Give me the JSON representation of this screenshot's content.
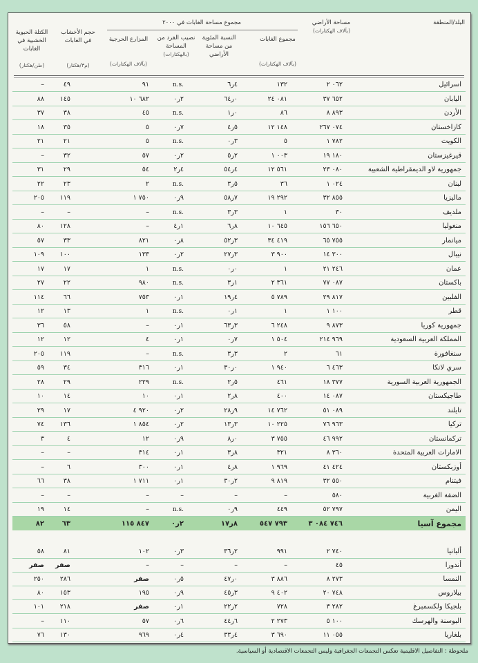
{
  "header": {
    "country": "البلد/المنطقة",
    "land_area": "مساحة الأراضي",
    "land_area_unit": "(بآلاف الهكتارات)",
    "forest_group": "مجموع مساحة الغابات في ٢٠٠٠",
    "forest_total": "مجموع الغابات",
    "forest_total_unit": "(بآلاف الهكتارات)",
    "forest_pct": "النسبة المئوية من مساحة الأراضي",
    "per_capita": "نصيب الفرد من المساحة",
    "per_capita_unit": "(بالهكتارات)",
    "plantations": "المزارع الحرجية",
    "plantations_unit": "(بآلاف الهكتارات)",
    "volume": "حجم الأخشاب في الغابات",
    "volume_unit": "(م٣/هكتار)",
    "biomass": "الكتلة الحيوية الخشبية في الغابات",
    "biomass_unit": "(طن/هكتار)"
  },
  "asia_rows": [
    [
      "اسرائيل",
      "٢ ٠٦٢",
      "١٣٢",
      "٦ر٤",
      "n.s.",
      "٩١",
      "٤٩",
      "–"
    ],
    [
      "اليابان",
      "٣٧ ٦٥٢",
      "٢٤ ٠٨١",
      "٦٤ر٠",
      "٠ر٢",
      "١٠ ٦٨٢",
      "١٤٥",
      "٨٨"
    ],
    [
      "الأردن",
      "٨ ٨٩٣",
      "٨٦",
      "١ر٠",
      "n.s.",
      "٤٥",
      "٣٨",
      "٣٧"
    ],
    [
      "كازاخستان",
      "٢٦٧ ٠٧٤",
      "١٢ ١٤٨",
      "٤ر٥",
      "٠ر٧",
      "٥",
      "٣٥",
      "١٨"
    ],
    [
      "الكويت",
      "١ ٧٨٢",
      "٥",
      "٠ر٣",
      "n.s.",
      "٥",
      "٢١",
      "٢١"
    ],
    [
      "قيرغيزستان",
      "١٩ ١٨٠",
      "١ ٠٠٣",
      "٥ر٢",
      "٠ر٢",
      "٥٧",
      "٣٢",
      "–"
    ],
    [
      "جمهورية لاو الديمقراطية الشعبية",
      "٢٣ ٠٨٠",
      "١٢ ٥٦١",
      "٥٤ر٤",
      "٢ر٤",
      "٥٤",
      "٢٩",
      "٣١"
    ],
    [
      "لبنان",
      "١ ٠٢٤",
      "٣٦",
      "٣ر٥",
      "n.s.",
      "٢",
      "٢٣",
      "٢٢"
    ],
    [
      "ماليزيا",
      "٣٢ ٨٥٥",
      "١٩ ٢٩٢",
      "٥٨ر٧",
      "٠ر٩",
      "١ ٧٥٠",
      "١١٩",
      "٢٠٥"
    ],
    [
      "ملديف",
      "٣٠",
      "١",
      "٣ر٣",
      "n.s.",
      "–",
      "–",
      "–"
    ],
    [
      "منغوليا",
      "١٥٦ ٦٥٠",
      "١٠ ٦٤٥",
      "٦ر٨",
      "٤ر١",
      "–",
      "١٢٨",
      "٨٠"
    ],
    [
      "ميانمار",
      "٦٥ ٧٥٥",
      "٣٤ ٤١٩",
      "٥٢ر٣",
      "٠ر٨",
      "٨٢١",
      "٣٣",
      "٥٧"
    ],
    [
      "نيبال",
      "١٤ ٣٠٠",
      "٣ ٩٠٠",
      "٢٧ر٣",
      "٠ر٢",
      "١٣٣",
      "١٠٠",
      "١٠٩"
    ],
    [
      "عمان",
      "٢١ ٢٤٦",
      "١",
      "٠ر٠",
      "n.s.",
      "١",
      "١٧",
      "١٧"
    ],
    [
      "باكستان",
      "٧٧ ٠٨٧",
      "٢ ٣٦١",
      "٣ر١",
      "n.s.",
      "٩٨٠",
      "٢٢",
      "٢٧"
    ],
    [
      "الفلبين",
      "٢٩ ٨١٧",
      "٥ ٧٨٩",
      "١٩ر٤",
      "٠ر١",
      "٧٥٣",
      "٦٦",
      "١١٤"
    ],
    [
      "قطر",
      "١ ١٠٠",
      "١",
      "٠ر١",
      "n.s.",
      "١",
      "١٣",
      "١٢"
    ],
    [
      "جمهورية كوريا",
      "٩ ٨٧٣",
      "٦ ٢٤٨",
      "٦٣ر٣",
      "٠ر١",
      "–",
      "٥٨",
      "٣٦"
    ],
    [
      "المملكة العربية السعودية",
      "٢١٤ ٩٦٩",
      "١ ٥٠٤",
      "٠ر٧",
      "٠ر١",
      "٤",
      "١٢",
      "١٢"
    ],
    [
      "سنغافورة",
      "٦١",
      "٢",
      "٣ر٣",
      "n.s.",
      "–",
      "١١٩",
      "٢٠٥"
    ],
    [
      "سري لانكا",
      "٦ ٤٦٣",
      "١ ٩٤٠",
      "٣٠ر٠",
      "٠ر١",
      "٣١٦",
      "٣٤",
      "٥٩"
    ],
    [
      "الجمهورية العربية السورية",
      "١٨ ٣٧٧",
      "٤٦١",
      "٢ر٥",
      "n.s.",
      "٢٢٩",
      "٢٩",
      "٢٨"
    ],
    [
      "طاجيكستان",
      "١٤ ٠٨٧",
      "٤٠٠",
      "٢ر٨",
      "٠ر١",
      "١٠",
      "١٤",
      "١٠"
    ],
    [
      "تايلند",
      "٥١ ٠٨٩",
      "١٤ ٧٦٢",
      "٢٨ر٩",
      "٠ر٢",
      "٤ ٩٢٠",
      "١٧",
      "٢٩"
    ],
    [
      "تركيا",
      "٧٦ ٩٦٣",
      "١٠ ٢٢٥",
      "١٣ر٣",
      "٠ر٢",
      "١ ٨٥٤",
      "١٣٦",
      "٧٤"
    ],
    [
      "تركمانستان",
      "٤٦ ٩٩٢",
      "٣ ٧٥٥",
      "٨ر٠",
      "٠ر٩",
      "١٢",
      "٤",
      "٣"
    ],
    [
      "الامارات العربية المتحدة",
      "٨ ٣٦٠",
      "٣٢١",
      "٣ر٨",
      "٠ر١",
      "٣١٤",
      "–",
      "–"
    ],
    [
      "أوزبكستان",
      "٤١ ٤٢٤",
      "١ ٩٦٩",
      "٤ر٨",
      "٠ر١",
      "٣٠٠",
      "٦",
      "–"
    ],
    [
      "فيتنام",
      "٣٢ ٥٥٠",
      "٩ ٨١٩",
      "٣٠ر٢",
      "٠ر١",
      "١ ٧١١",
      "٣٨",
      "٦٦"
    ],
    [
      "الضفة الغربية",
      "٥٨٠",
      "–",
      "–",
      "–",
      "–",
      "–",
      "–"
    ],
    [
      "اليمن",
      "٥٢ ٧٩٧",
      "٤٤٩",
      "٠ر٩",
      "n.s.",
      "–",
      "١٤",
      "١٩"
    ]
  ],
  "asia_total": [
    "مجموع آسيا",
    "٣ ٠٨٤ ٧٤٦",
    "٥٤٧ ٧٩٣",
    "١٧ر٨",
    "٠ر٢",
    "١١٥ ٨٤٧",
    "٦٣",
    "٨٢"
  ],
  "europe_rows": [
    [
      "ألبانيا",
      "٢ ٧٤٠",
      "٩٩١",
      "٣٦ر٢",
      "٠ر٣",
      "١٠٢",
      "٨١",
      "٥٨"
    ],
    [
      "أندورا",
      "٤٥",
      "–",
      "–",
      "–",
      "–",
      "صفر",
      "صفر"
    ],
    [
      "النمسا",
      "٨ ٢٧٣",
      "٣ ٨٨٦",
      "٤٧ر٠",
      "٠ر٥",
      "صفر",
      "٢٨٦",
      "٢٥٠"
    ],
    [
      "بيلاروس",
      "٢٠ ٧٤٨",
      "٩ ٤٠٢",
      "٤٥ر٣",
      "٠ر٩",
      "١٩٥",
      "١٥٣",
      "٨٠"
    ],
    [
      "بلجيكا ولكسمبرغ",
      "٣ ٢٨٢",
      "٧٢٨",
      "٢٢ر٢",
      "٠ر١",
      "صفر",
      "٢١٨",
      "١٠١"
    ],
    [
      "البوسنة والهرسك",
      "٥ ١٠٠",
      "٢ ٢٧٣",
      "٤٤ر٦",
      "٠ر٦",
      "٥٧",
      "١١٠",
      "–"
    ],
    [
      "بلغاريا",
      "١١ ٠٥٥",
      "٣ ٦٩٠",
      "٣٣ر٤",
      "٠ر٤",
      "٩٦٩",
      "١٣٠",
      "٧٦"
    ]
  ],
  "footnote": "ملحوظة : التفاصيل الاقليمية تعكس التجمعات الجغرافية وليس التجمعات الاقتصادية أو السياسية."
}
